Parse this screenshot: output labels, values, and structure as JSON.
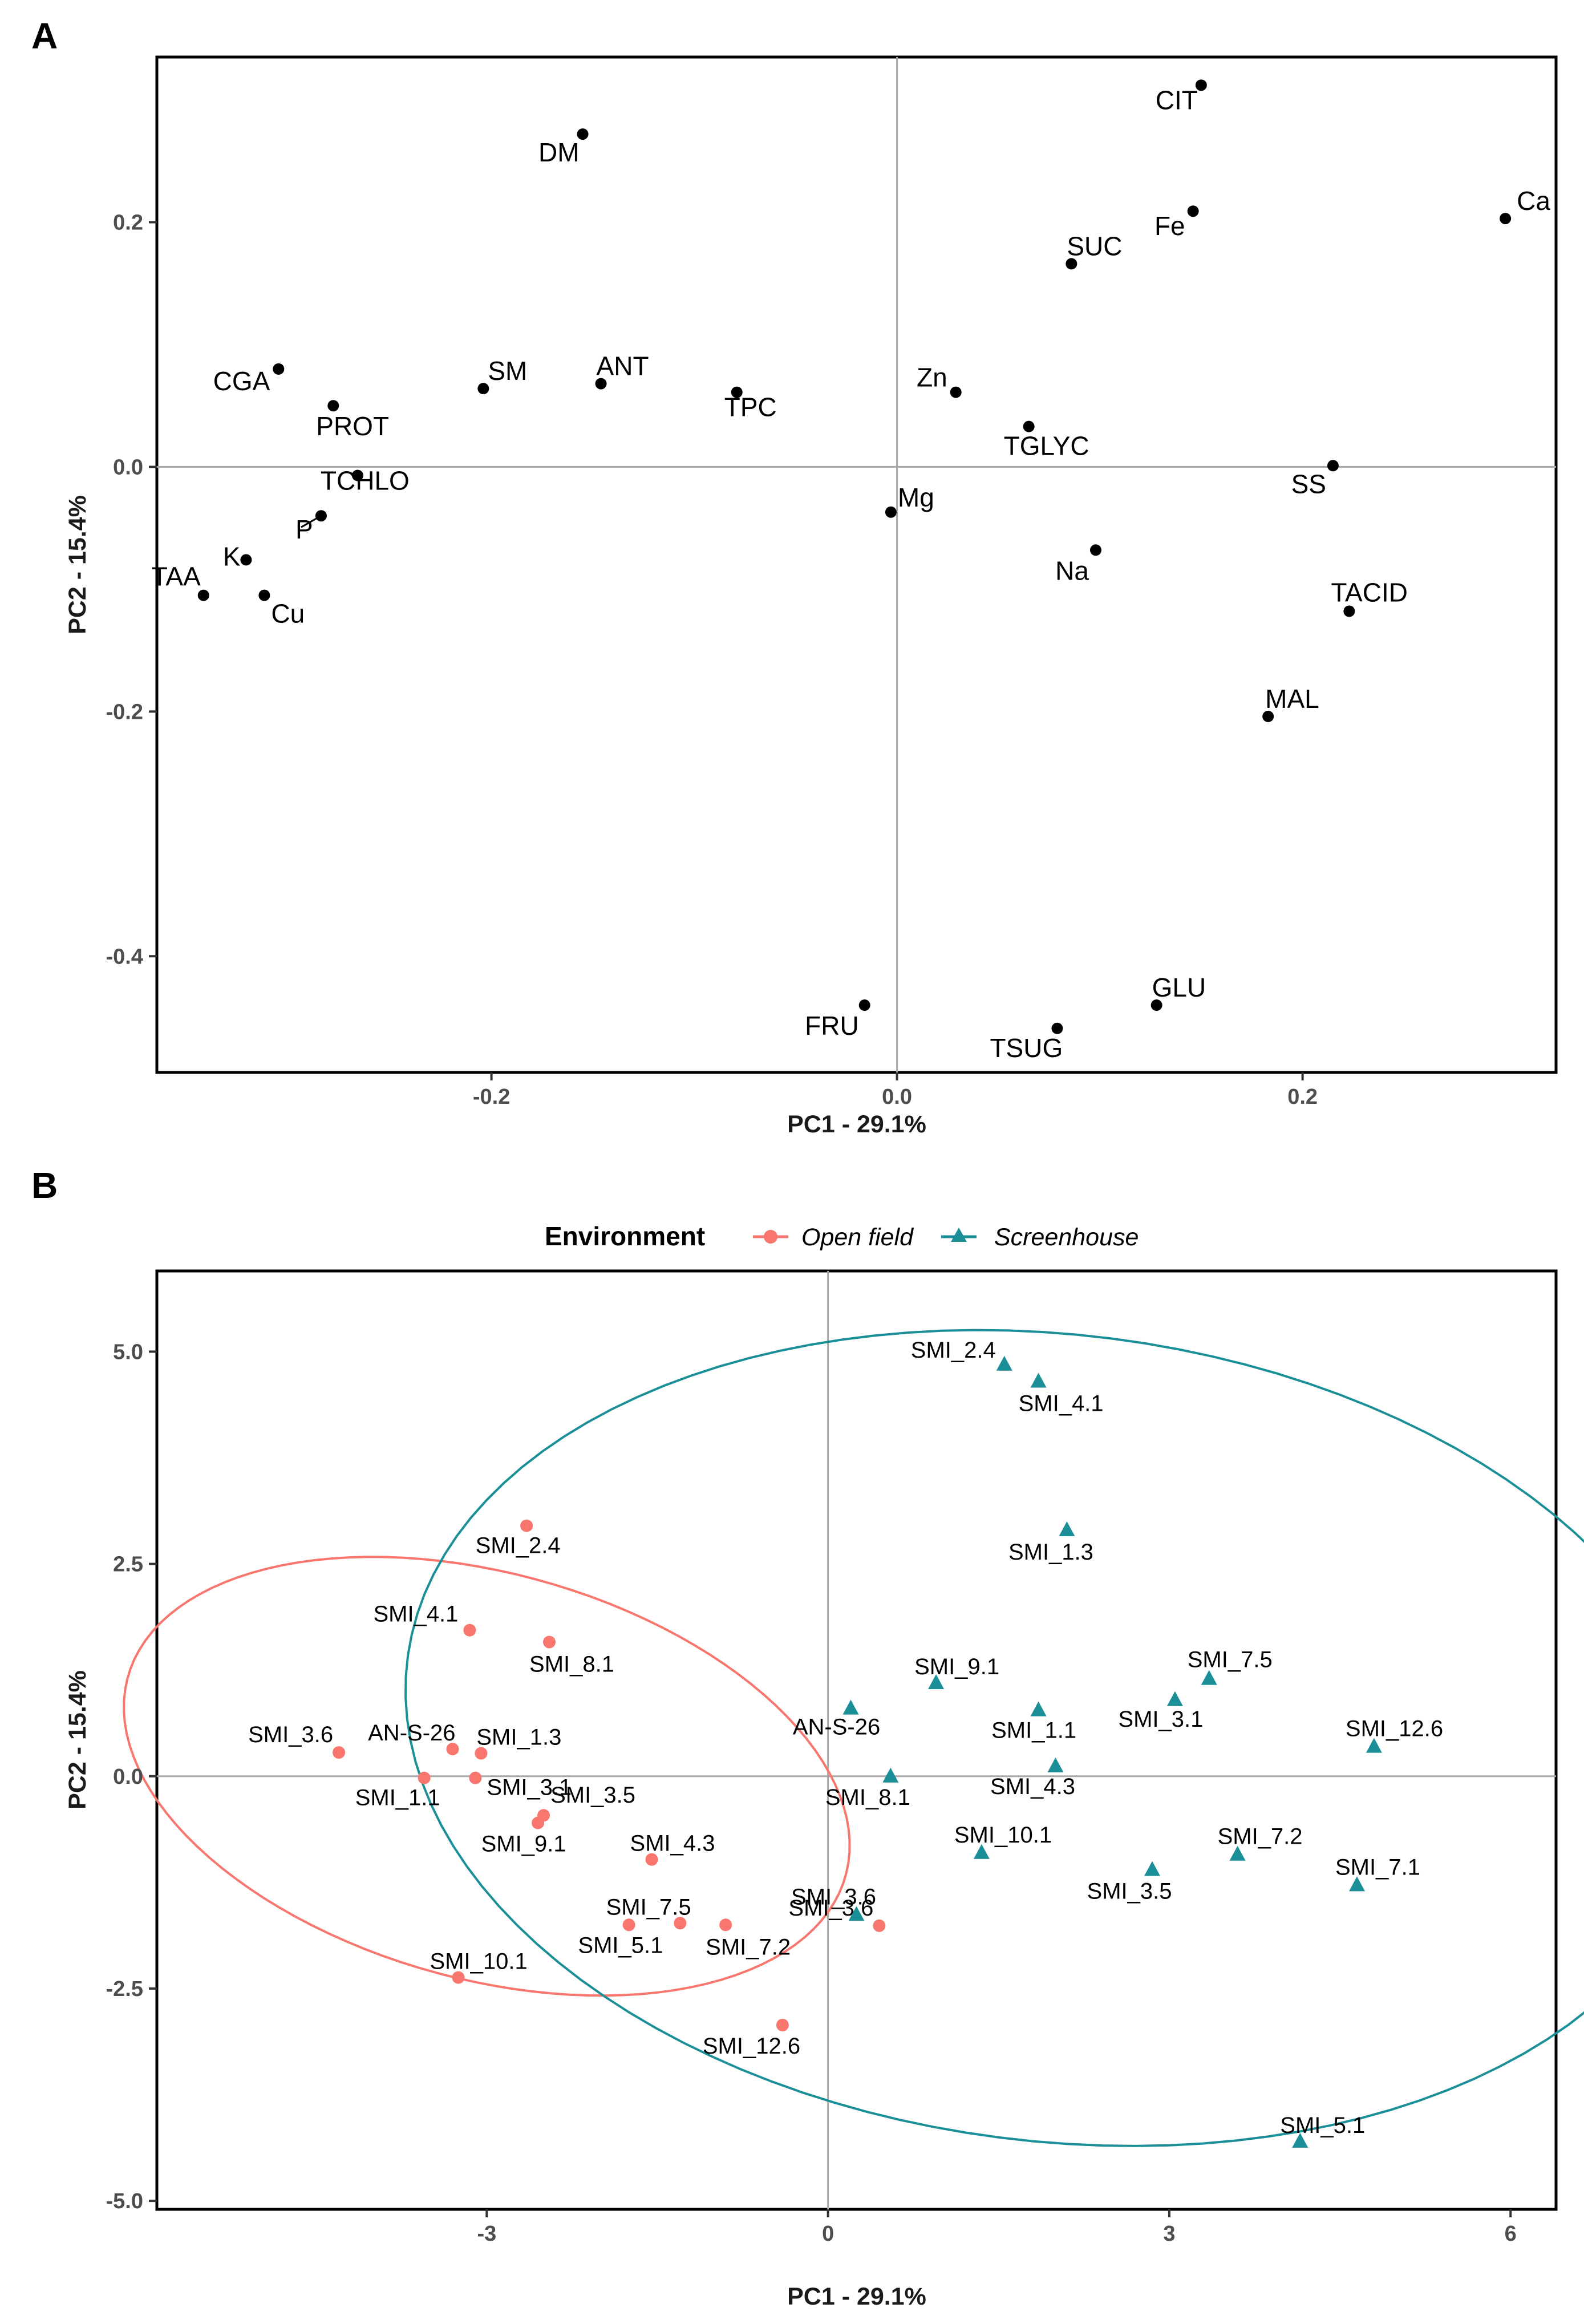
{
  "colors": {
    "open_field": "#F8766D",
    "screenhouse": "#1A8F97",
    "points": "#000000"
  },
  "chart_data": [
    {
      "panel": "A",
      "type": "scatter",
      "xlabel": "PC1 - 29.1%",
      "ylabel": "PC2 - 15.4%",
      "xlim": [
        -0.365,
        0.325
      ],
      "ylim": [
        -0.495,
        0.335
      ],
      "xticks": [
        -0.2,
        0.0,
        0.2
      ],
      "yticks": [
        0.2,
        0.0,
        -0.2,
        -0.4
      ],
      "xtick_labels": [
        "-0.2",
        "0.0",
        "0.2"
      ],
      "ytick_labels": [
        "0.2",
        "0.0",
        "-0.2",
        "-0.4"
      ],
      "grid": false,
      "reference_lines": [
        0,
        0
      ],
      "points": [
        {
          "label": "CIT",
          "x": 0.15,
          "y": 0.312
        },
        {
          "label": "DM",
          "x": -0.155,
          "y": 0.272
        },
        {
          "label": "Ca",
          "x": 0.3,
          "y": 0.203
        },
        {
          "label": "Fe",
          "x": 0.146,
          "y": 0.209
        },
        {
          "label": "SUC",
          "x": 0.086,
          "y": 0.166
        },
        {
          "label": "CGA",
          "x": -0.305,
          "y": 0.08
        },
        {
          "label": "PROT",
          "x": -0.278,
          "y": 0.05
        },
        {
          "label": "SM",
          "x": -0.204,
          "y": 0.064
        },
        {
          "label": "ANT",
          "x": -0.146,
          "y": 0.068
        },
        {
          "label": "TPC",
          "x": -0.079,
          "y": 0.061
        },
        {
          "label": "Zn",
          "x": 0.029,
          "y": 0.061
        },
        {
          "label": "TGLYC",
          "x": 0.065,
          "y": 0.033
        },
        {
          "label": "SS",
          "x": 0.215,
          "y": 0.001
        },
        {
          "label": "TCHLO",
          "x": -0.266,
          "y": -0.007
        },
        {
          "label": "P",
          "x": -0.284,
          "y": -0.04
        },
        {
          "label": "Mg",
          "x": -0.003,
          "y": -0.037
        },
        {
          "label": "K",
          "x": -0.321,
          "y": -0.076
        },
        {
          "label": "Na",
          "x": 0.098,
          "y": -0.068
        },
        {
          "label": "TAA",
          "x": -0.342,
          "y": -0.105
        },
        {
          "label": "Cu",
          "x": -0.312,
          "y": -0.105
        },
        {
          "label": "TACID",
          "x": 0.223,
          "y": -0.118
        },
        {
          "label": "MAL",
          "x": 0.183,
          "y": -0.204
        },
        {
          "label": "FRU",
          "x": -0.016,
          "y": -0.44
        },
        {
          "label": "GLU",
          "x": 0.128,
          "y": -0.44
        },
        {
          "label": "TSUG",
          "x": 0.079,
          "y": -0.459
        }
      ]
    },
    {
      "panel": "B",
      "type": "scatter",
      "xlabel": "PC1 - 29.1%",
      "ylabel": "PC2 - 15.4%",
      "xlim": [
        -5.9,
        6.4
      ],
      "ylim": [
        -5.1,
        5.95
      ],
      "xticks": [
        -3,
        0,
        3,
        6
      ],
      "yticks": [
        5.0,
        2.5,
        0.0,
        -2.5,
        -5.0
      ],
      "xtick_labels": [
        "-3",
        "0",
        "3",
        "6"
      ],
      "ytick_labels": [
        "5.0",
        "2.5",
        "0.0",
        "-2.5",
        "-5.0"
      ],
      "grid": false,
      "reference_lines": [
        0,
        0
      ],
      "legend": {
        "title": "Environment",
        "position": "top",
        "entries": [
          "Open field",
          "Screenhouse"
        ]
      },
      "series": [
        {
          "name": "Open field",
          "marker": "circle",
          "ellipse": {
            "cx": -3.0,
            "cy": 0.0,
            "rx": 3.4,
            "ry": 2.3,
            "angle_deg": -28
          },
          "points": [
            {
              "label": "SMI_2.4",
              "x": -2.65,
              "y": 2.95
            },
            {
              "label": "SMI_4.1",
              "x": -3.15,
              "y": 1.72
            },
            {
              "label": "SMI_8.1",
              "x": -2.45,
              "y": 1.58
            },
            {
              "label": "AN-S-26",
              "x": -3.3,
              "y": 0.32
            },
            {
              "label": "SMI_1.3",
              "x": -3.05,
              "y": 0.27
            },
            {
              "label": "SMI_3.6",
              "x": -4.3,
              "y": 0.28
            },
            {
              "label": "SMI_1.1",
              "x": -3.55,
              "y": -0.02
            },
            {
              "label": "SMI_3.1",
              "x": -3.1,
              "y": -0.02
            },
            {
              "label": "SMI_3.5",
              "x": -2.5,
              "y": -0.46
            },
            {
              "label": "SMI_9.1",
              "x": -2.55,
              "y": -0.55
            },
            {
              "label": "SMI_4.3",
              "x": -1.55,
              "y": -0.98
            },
            {
              "label": "SMI_7.5",
              "x": -1.75,
              "y": -1.75
            },
            {
              "label": "SMI_5.1",
              "x": -1.3,
              "y": -1.73
            },
            {
              "label": "SMI_7.2",
              "x": -0.9,
              "y": -1.75
            },
            {
              "label": "SMI_3.6",
              "x": 0.45,
              "y": -1.76
            },
            {
              "label": "SMI_10.1",
              "x": -3.25,
              "y": -2.37
            },
            {
              "label": "SMI_12.6",
              "x": -0.4,
              "y": -2.93
            }
          ]
        },
        {
          "name": "Screenhouse",
          "marker": "triangle",
          "ellipse": {
            "cx": 2.0,
            "cy": 0.45,
            "rx": 5.8,
            "ry": 4.7,
            "angle_deg": -17
          },
          "points": [
            {
              "label": "SMI_2.4",
              "x": 1.55,
              "y": 4.85
            },
            {
              "label": "SMI_4.1",
              "x": 1.85,
              "y": 4.65
            },
            {
              "label": "SMI_1.3",
              "x": 2.1,
              "y": 2.9
            },
            {
              "label": "SMI_9.1",
              "x": 0.95,
              "y": 1.1
            },
            {
              "label": "SMI_7.5",
              "x": 3.35,
              "y": 1.15
            },
            {
              "label": "SMI_3.1",
              "x": 3.05,
              "y": 0.9
            },
            {
              "label": "SMI_1.1",
              "x": 1.85,
              "y": 0.78
            },
            {
              "label": "AN-S-26",
              "x": 0.2,
              "y": 0.8
            },
            {
              "label": "SMI_12.6",
              "x": 4.8,
              "y": 0.35
            },
            {
              "label": "SMI_4.3",
              "x": 2.0,
              "y": 0.12
            },
            {
              "label": "SMI_8.1",
              "x": 0.55,
              "y": 0.0
            },
            {
              "label": "SMI_10.1",
              "x": 1.35,
              "y": -0.9
            },
            {
              "label": "SMI_7.2",
              "x": 3.6,
              "y": -0.92
            },
            {
              "label": "SMI_3.5",
              "x": 2.85,
              "y": -1.1
            },
            {
              "label": "SMI_7.1",
              "x": 4.65,
              "y": -1.28
            },
            {
              "label": "SMI_3.6",
              "x": 0.25,
              "y": -1.63
            },
            {
              "label": "SMI_5.1",
              "x": 4.15,
              "y": -4.3
            }
          ]
        }
      ]
    }
  ]
}
